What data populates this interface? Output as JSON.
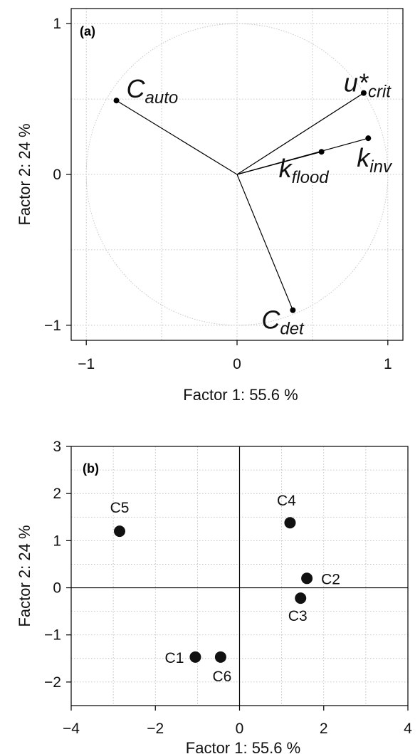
{
  "chart_data": [
    {
      "type": "scatter",
      "panel_label": "(a)",
      "xlabel": "Factor 1: 55.6 %",
      "ylabel": "Factor 2: 24 %",
      "xlim": [
        -1.1,
        1.1
      ],
      "ylim": [
        -1.1,
        1.1
      ],
      "xticks": [
        -1,
        0,
        1
      ],
      "yticks": [
        -1,
        0,
        1
      ],
      "xtick_labels": [
        "−1",
        "0",
        "1"
      ],
      "ytick_labels": [
        "−1",
        "0",
        "1"
      ],
      "grid": true,
      "unit_circle": true,
      "vectors": [
        {
          "base": "C",
          "sub": "auto",
          "x": -0.8,
          "y": 0.49
        },
        {
          "base": "u*",
          "sub": "crit",
          "x": 0.84,
          "y": 0.54
        },
        {
          "base": "k",
          "sub": "inv",
          "x": 0.87,
          "y": 0.24
        },
        {
          "base": "k",
          "sub": "flood",
          "x": 0.56,
          "y": 0.15
        },
        {
          "base": "C",
          "sub": "det",
          "x": 0.37,
          "y": -0.9
        }
      ]
    },
    {
      "type": "scatter",
      "panel_label": "(b)",
      "xlabel": "Factor 1: 55.6 %",
      "ylabel": "Factor 2: 24 %",
      "xlim": [
        -4,
        4
      ],
      "ylim": [
        -2.5,
        3
      ],
      "xticks": [
        -4,
        -2,
        0,
        2,
        4
      ],
      "yticks": [
        -2,
        -1,
        0,
        1,
        2,
        3
      ],
      "xtick_labels": [
        "−4",
        "−2",
        "0",
        "2",
        "4"
      ],
      "ytick_labels": [
        "−2",
        "−1",
        "0",
        "1",
        "2",
        "3"
      ],
      "grid": true,
      "points": [
        {
          "label": "C5",
          "x": -2.85,
          "y": 1.2
        },
        {
          "label": "C4",
          "x": 1.2,
          "y": 1.38
        },
        {
          "label": "C2",
          "x": 1.6,
          "y": 0.2
        },
        {
          "label": "C3",
          "x": 1.45,
          "y": -0.22
        },
        {
          "label": "C1",
          "x": -1.05,
          "y": -1.47
        },
        {
          "label": "C6",
          "x": -0.45,
          "y": -1.47
        }
      ]
    }
  ]
}
